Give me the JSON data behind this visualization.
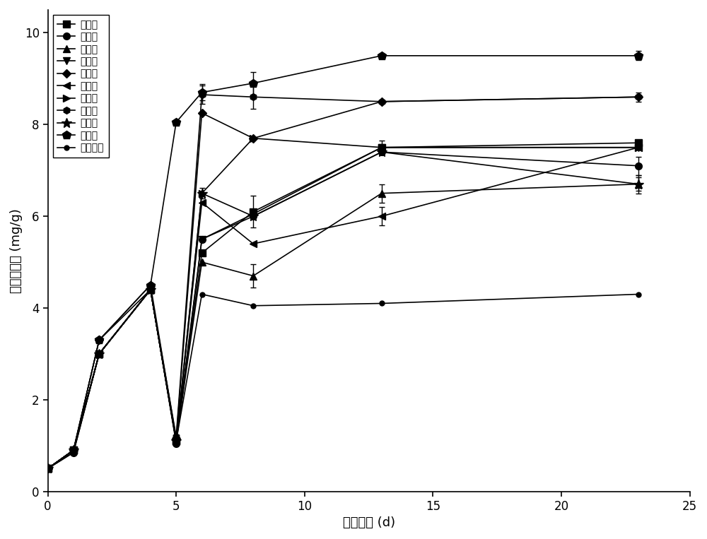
{
  "series": [
    {
      "label": "第一组",
      "marker": "s",
      "x": [
        0,
        1,
        2,
        4,
        5,
        6,
        8,
        13,
        23
      ],
      "y": [
        0.5,
        0.9,
        3.0,
        4.4,
        1.1,
        5.2,
        6.1,
        7.5,
        7.6
      ],
      "yerr": [
        0,
        0,
        0,
        0,
        0,
        0,
        0.35,
        0.15,
        0
      ]
    },
    {
      "label": "第二组",
      "marker": "o",
      "x": [
        0,
        1,
        2,
        4,
        5,
        6,
        8,
        13,
        23
      ],
      "y": [
        0.5,
        0.85,
        3.0,
        4.4,
        1.05,
        5.5,
        6.0,
        7.4,
        7.1
      ],
      "yerr": [
        0,
        0,
        0,
        0,
        0,
        0,
        0,
        0,
        0.2
      ]
    },
    {
      "label": "第三组",
      "marker": "^",
      "x": [
        0,
        1,
        2,
        4,
        5,
        6,
        8,
        13,
        23
      ],
      "y": [
        0.5,
        0.9,
        3.0,
        4.4,
        1.1,
        5.0,
        4.7,
        6.5,
        6.7
      ],
      "yerr": [
        0,
        0,
        0,
        0,
        0,
        0,
        0.25,
        0.2,
        0.15
      ]
    },
    {
      "label": "第四组",
      "marker": "v",
      "x": [
        0,
        1,
        2,
        4,
        5,
        6,
        8,
        13,
        23
      ],
      "y": [
        0.5,
        0.9,
        3.0,
        4.4,
        1.1,
        5.5,
        6.05,
        7.5,
        7.5
      ],
      "yerr": [
        0,
        0,
        0,
        0,
        0,
        0,
        0,
        0,
        0
      ]
    },
    {
      "label": "第五组",
      "marker": "D",
      "x": [
        0,
        1,
        2,
        4,
        5,
        6,
        8,
        13,
        23
      ],
      "y": [
        0.5,
        0.9,
        3.3,
        4.5,
        1.15,
        8.25,
        7.7,
        8.5,
        8.6
      ],
      "yerr": [
        0,
        0,
        0,
        0,
        0,
        0,
        0,
        0,
        0.1
      ]
    },
    {
      "label": "第六组",
      "marker": "<",
      "x": [
        0,
        1,
        2,
        4,
        5,
        6,
        8,
        13,
        23
      ],
      "y": [
        0.5,
        0.9,
        3.0,
        4.4,
        1.1,
        6.3,
        5.4,
        6.0,
        7.5
      ],
      "yerr": [
        0,
        0,
        0,
        0,
        0,
        0,
        0,
        0.2,
        0
      ]
    },
    {
      "label": "第七组",
      "marker": ">",
      "x": [
        0,
        1,
        2,
        4,
        5,
        6,
        8,
        13,
        23
      ],
      "y": [
        0.5,
        0.9,
        3.0,
        4.4,
        1.1,
        6.5,
        7.7,
        7.5,
        7.5
      ],
      "yerr": [
        0,
        0,
        0,
        0,
        0,
        0,
        0,
        0,
        0
      ]
    },
    {
      "label": "第八组",
      "marker": "h",
      "x": [
        0,
        1,
        2,
        4,
        5,
        6,
        8,
        13,
        23
      ],
      "y": [
        0.5,
        0.9,
        3.3,
        4.4,
        1.2,
        8.65,
        8.6,
        8.5,
        8.6
      ],
      "yerr": [
        0,
        0,
        0,
        0,
        0,
        0.2,
        0.25,
        0,
        0
      ]
    },
    {
      "label": "第九组",
      "marker": "*",
      "x": [
        0,
        1,
        2,
        4,
        5,
        6,
        8,
        13,
        23
      ],
      "y": [
        0.5,
        0.9,
        3.0,
        4.4,
        1.1,
        6.5,
        6.0,
        7.4,
        6.7
      ],
      "yerr": [
        0,
        0,
        0,
        0,
        0,
        0.12,
        0,
        0,
        0.2
      ]
    },
    {
      "label": "第十组",
      "marker": "p",
      "x": [
        0,
        1,
        2,
        4,
        5,
        6,
        8,
        13,
        23
      ],
      "y": [
        0.5,
        0.9,
        3.3,
        4.5,
        8.05,
        8.7,
        8.9,
        9.5,
        9.5
      ],
      "yerr": [
        0,
        0,
        0,
        0,
        0,
        0.18,
        0.25,
        0,
        0.1
      ]
    },
    {
      "label": "第十一组",
      "marker": "o",
      "markersize_small": true,
      "x": [
        0,
        1,
        2,
        4,
        5,
        6,
        8,
        13,
        23
      ],
      "y": [
        0.5,
        0.85,
        3.0,
        4.4,
        1.1,
        4.3,
        4.05,
        4.1,
        4.3
      ],
      "yerr": [
        0,
        0,
        0,
        0,
        0,
        0,
        0,
        0,
        0
      ]
    }
  ],
  "xlabel": "发酵时间 (d)",
  "ylabel": "氨态氮含量 (mg/g)",
  "xlim": [
    0,
    25
  ],
  "ylim": [
    0,
    10.5
  ],
  "xticks": [
    0,
    5,
    10,
    15,
    20,
    25
  ],
  "yticks": [
    0,
    2,
    4,
    6,
    8,
    10
  ],
  "markersize": 7,
  "linewidth": 1.2,
  "color": "#000000",
  "figsize": [
    10.0,
    7.63
  ],
  "dpi": 100
}
